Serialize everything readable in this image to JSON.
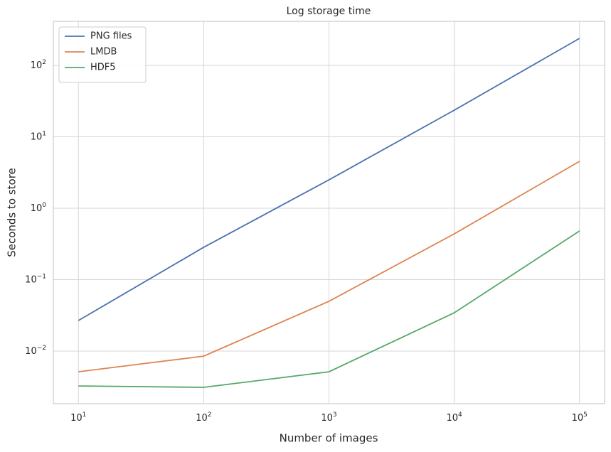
{
  "chart_data": {
    "type": "line",
    "title": "Log storage time",
    "xlabel": "Number of images",
    "ylabel": "Seconds to store",
    "x": [
      10,
      100,
      1000,
      10000,
      100000
    ],
    "series": [
      {
        "name": "PNG files",
        "color": "#4c72b0",
        "values": [
          0.0268,
          0.284,
          2.5,
          23.6,
          239
        ]
      },
      {
        "name": "LMDB",
        "color": "#dd8452",
        "values": [
          0.00514,
          0.0085,
          0.0498,
          0.438,
          4.54
        ]
      },
      {
        "name": "HDF5",
        "color": "#55a868",
        "values": [
          0.00325,
          0.00311,
          0.00514,
          0.0344,
          0.481
        ]
      }
    ],
    "xscale": "log",
    "yscale": "log",
    "xlim": [
      6.31,
      158489
    ],
    "ylim": [
      0.001837,
      414
    ],
    "xticks": [
      {
        "value": 10,
        "label": "10^1"
      },
      {
        "value": 100,
        "label": "10^2"
      },
      {
        "value": 1000,
        "label": "10^3"
      },
      {
        "value": 10000,
        "label": "10^4"
      },
      {
        "value": 100000,
        "label": "10^5"
      }
    ],
    "yticks": [
      {
        "value": 0.01,
        "label": "10^−2"
      },
      {
        "value": 0.1,
        "label": "10^−1"
      },
      {
        "value": 1,
        "label": "10^0"
      },
      {
        "value": 10,
        "label": "10^1"
      },
      {
        "value": 100,
        "label": "10^2"
      }
    ],
    "grid": true,
    "legend": "upper left"
  }
}
